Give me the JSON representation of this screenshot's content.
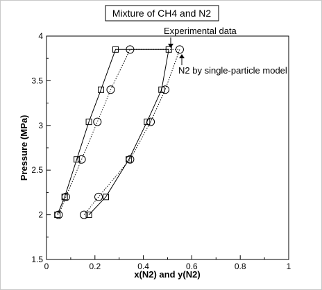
{
  "chart_data": {
    "type": "scatter",
    "title": "Mixture of CH4 and N2",
    "xlabel": "x(N2) and y(N2)",
    "ylabel": "Pressure (MPa)",
    "xlim": [
      0,
      1
    ],
    "ylim": [
      1.5,
      4
    ],
    "xticks": [
      "0",
      "0.2",
      "0.4",
      "0.6",
      "0.8",
      "1"
    ],
    "yticks": [
      "1.5",
      "2",
      "2.5",
      "3",
      "3.5",
      "4"
    ],
    "grid": false,
    "series": [
      {
        "name": "Experimental data",
        "marker": "square",
        "line": "solid",
        "x": [
          0.175,
          0.245,
          0.34,
          0.415,
          0.475,
          0.505,
          0.285,
          0.225,
          0.175,
          0.125,
          0.075,
          0.045
        ],
        "y": [
          2.0,
          2.2,
          2.62,
          3.04,
          3.4,
          3.85,
          3.85,
          3.4,
          3.04,
          2.62,
          2.2,
          2.0
        ]
      },
      {
        "name": "N2 by single-particle model",
        "marker": "circle",
        "line": "dotted",
        "x": [
          0.155,
          0.215,
          0.345,
          0.43,
          0.49,
          0.55,
          0.345,
          0.265,
          0.21,
          0.145,
          0.08,
          0.05
        ],
        "y": [
          2.0,
          2.2,
          2.62,
          3.04,
          3.4,
          3.85,
          3.85,
          3.4,
          3.04,
          2.62,
          2.2,
          2.0
        ]
      }
    ]
  },
  "annotations": {
    "experimental": "Experimental data",
    "model": "N2 by single-particle model"
  }
}
